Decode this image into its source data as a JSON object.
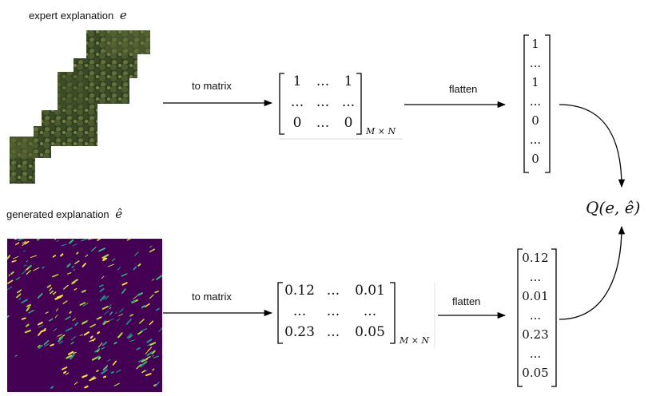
{
  "top": {
    "caption_text": "expert explanation",
    "caption_symbol": "e",
    "arrow1_label": "to matrix",
    "arrow2_label": "flatten",
    "matrix": [
      [
        "1",
        "...",
        "1"
      ],
      [
        "...",
        "...",
        "..."
      ],
      [
        "0",
        "...",
        "0"
      ]
    ],
    "matrix_size": "M × N",
    "vector": [
      "1",
      "...",
      "1",
      "...",
      "0",
      "...",
      "0"
    ]
  },
  "bottom": {
    "caption_text": "generated explanation",
    "caption_symbol": "ê",
    "arrow1_label": "to matrix",
    "arrow2_label": "flatten",
    "matrix": [
      [
        "0.12",
        "...",
        "0.01"
      ],
      [
        "...",
        "...",
        "..."
      ],
      [
        "0.23",
        "...",
        "0.05"
      ]
    ],
    "matrix_size": "M × N",
    "vector": [
      "0.12",
      "...",
      "0.01",
      "...",
      "0.23",
      "...",
      "0.05"
    ]
  },
  "result": {
    "label": "Q(e, ê)"
  },
  "colors": {
    "heatmap_background": "#440154",
    "heatmap_highlight": "#fde725",
    "heatmap_mid": "#35b779",
    "forest_dark": "#2b3a1e",
    "forest_light": "#6f7a3c"
  }
}
